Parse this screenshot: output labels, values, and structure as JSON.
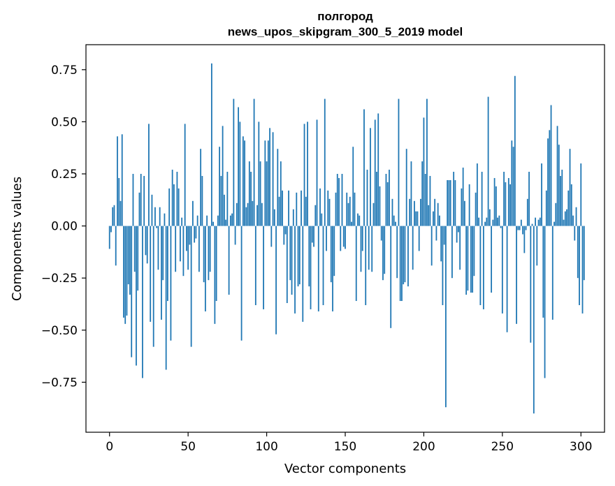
{
  "chart_data": {
    "type": "bar",
    "title_line1": "полгород",
    "title_line2": "news_upos_skipgram_300_5_2019 model",
    "xlabel": "Vector components",
    "ylabel": "Components values",
    "xlim": [
      -15,
      315
    ],
    "ylim": [
      -0.99,
      0.87
    ],
    "xticks": [
      0,
      50,
      100,
      150,
      200,
      250,
      300
    ],
    "xtick_labels": [
      "0",
      "50",
      "100",
      "150",
      "200",
      "250",
      "300"
    ],
    "yticks": [
      -0.75,
      -0.5,
      -0.25,
      0.0,
      0.25,
      0.5,
      0.75
    ],
    "ytick_labels": [
      "−0.75",
      "−0.50",
      "−0.25",
      "0.00",
      "0.25",
      "0.50",
      "0.75"
    ],
    "bar_color": "#1f77b4",
    "values": [
      -0.11,
      -0.03,
      0.09,
      0.1,
      -0.19,
      0.43,
      0.23,
      0.12,
      0.44,
      -0.44,
      -0.47,
      -0.43,
      -0.28,
      -0.33,
      -0.63,
      0.25,
      -0.22,
      -0.67,
      -0.31,
      0.16,
      0.25,
      -0.73,
      0.24,
      -0.14,
      -0.18,
      0.49,
      -0.46,
      0.15,
      -0.58,
      0.09,
      -0.01,
      -0.21,
      0.09,
      -0.45,
      -0.26,
      0.06,
      -0.69,
      -0.36,
      0.18,
      -0.55,
      0.27,
      0.2,
      -0.22,
      0.26,
      0.18,
      -0.17,
      0.04,
      -0.24,
      0.49,
      -0.12,
      -0.21,
      -0.09,
      -0.58,
      0.12,
      -0.08,
      -0.06,
      0.05,
      -0.22,
      0.37,
      0.24,
      -0.27,
      -0.41,
      0.05,
      -0.26,
      -0.22,
      0.78,
      0.02,
      -0.47,
      -0.36,
      0.05,
      0.38,
      0.24,
      0.48,
      0.15,
      0.03,
      0.26,
      -0.33,
      0.05,
      0.06,
      0.61,
      -0.09,
      0.11,
      0.57,
      0.5,
      -0.55,
      0.43,
      0.41,
      0.09,
      0.11,
      0.31,
      0.26,
      0.12,
      0.61,
      -0.38,
      0.1,
      0.5,
      0.31,
      0.11,
      -0.4,
      0.41,
      0.31,
      0.41,
      0.47,
      -0.1,
      0.45,
      0.08,
      -0.52,
      0.37,
      0.14,
      0.31,
      0.17,
      -0.09,
      -0.04,
      -0.37,
      0.17,
      -0.26,
      -0.33,
      0.08,
      -0.42,
      0.16,
      -0.29,
      -0.28,
      0.17,
      -0.46,
      0.49,
      0.14,
      0.5,
      -0.29,
      -0.4,
      -0.08,
      -0.1,
      0.1,
      0.51,
      -0.41,
      0.18,
      0.06,
      -0.38,
      0.61,
      -0.12,
      0.17,
      0.13,
      -0.27,
      -0.41,
      -0.24,
      0.16,
      0.25,
      0.23,
      -0.12,
      0.25,
      -0.1,
      -0.11,
      0.16,
      0.11,
      0.14,
      0.02,
      0.38,
      0.16,
      -0.36,
      0.06,
      0.05,
      -0.22,
      -0.12,
      0.56,
      -0.38,
      0.27,
      -0.21,
      0.47,
      -0.22,
      0.11,
      0.51,
      0.26,
      0.54,
      0.19,
      -0.07,
      -0.26,
      -0.23,
      0.25,
      0.21,
      0.27,
      -0.49,
      0.13,
      0.05,
      0.02,
      -0.25,
      0.61,
      -0.36,
      -0.36,
      -0.28,
      -0.27,
      0.37,
      -0.29,
      0.13,
      0.31,
      -0.21,
      0.12,
      0.07,
      0.07,
      -0.12,
      0.13,
      0.31,
      0.52,
      0.25,
      0.61,
      0.1,
      0.24,
      -0.19,
      0.07,
      0.13,
      -0.07,
      0.11,
      0.05,
      -0.17,
      -0.38,
      -0.09,
      -0.87,
      0.22,
      0.22,
      0.22,
      -0.25,
      0.26,
      0.22,
      -0.08,
      -0.03,
      -0.21,
      0.18,
      0.28,
      0.12,
      -0.33,
      -0.31,
      0.2,
      -0.32,
      -0.32,
      -0.24,
      0.16,
      0.3,
      0.04,
      -0.38,
      0.26,
      -0.4,
      0.02,
      0.04,
      0.62,
      0.08,
      -0.32,
      0.03,
      0.23,
      0.19,
      0.04,
      0.05,
      -0.01,
      -0.42,
      0.26,
      0.21,
      -0.51,
      0.23,
      0.2,
      0.41,
      0.38,
      0.72,
      -0.47,
      -0.02,
      -0.02,
      0.03,
      -0.04,
      -0.13,
      -0.02,
      0.13,
      0.26,
      -0.56,
      0.01,
      -0.9,
      0.04,
      -0.19,
      0.03,
      0.04,
      0.3,
      -0.44,
      -0.73,
      0.17,
      0.42,
      0.46,
      0.58,
      -0.45,
      0.02,
      0.11,
      0.48,
      0.39,
      0.24,
      0.27,
      0.03,
      0.07,
      0.08,
      0.17,
      0.37,
      0.2,
      0.05,
      -0.07,
      0.09,
      -0.25,
      -0.38,
      0.3,
      -0.42,
      -0.26
    ]
  }
}
